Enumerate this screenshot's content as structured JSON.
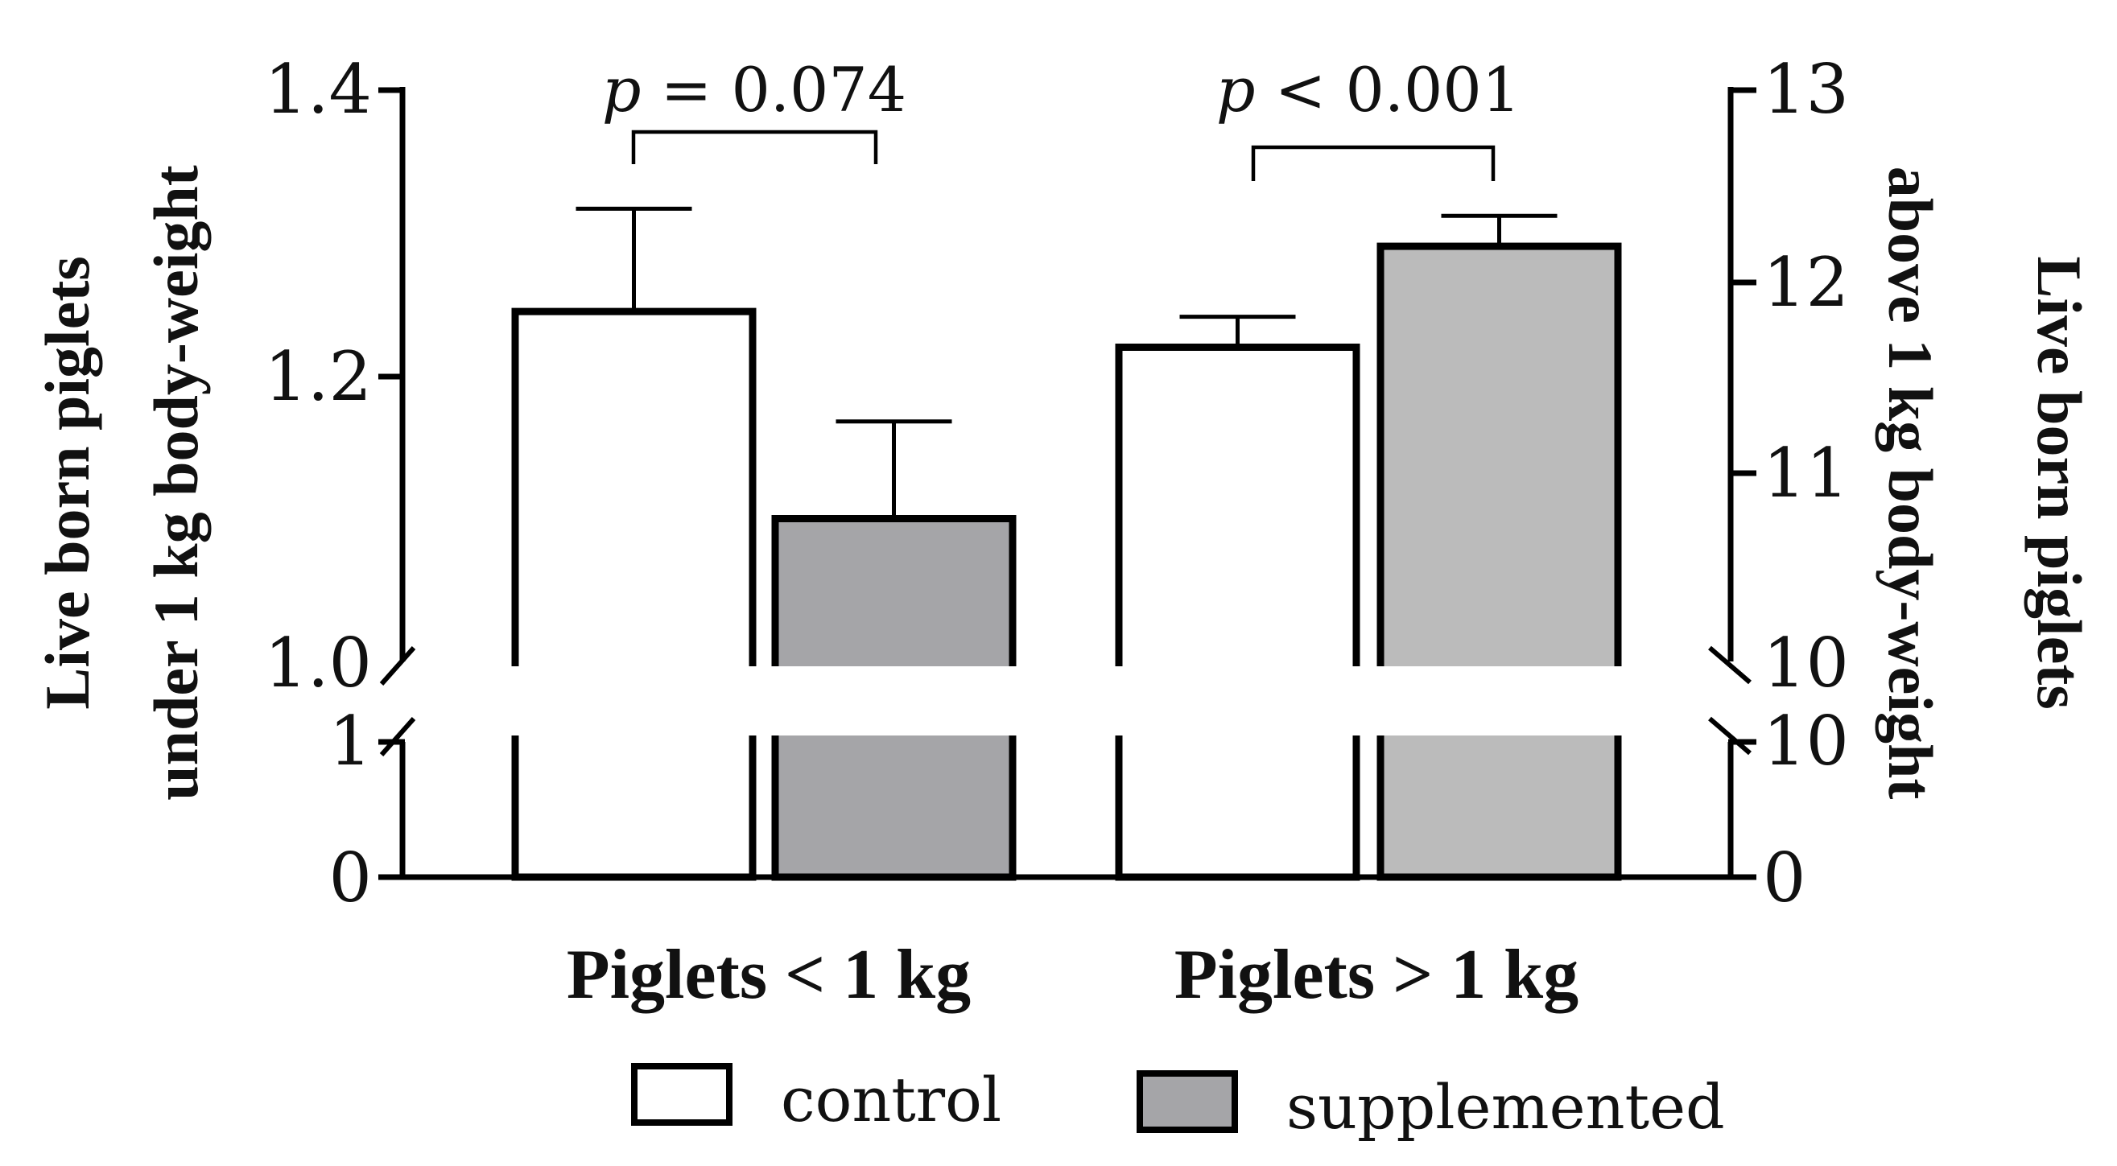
{
  "chart_data": {
    "type": "bar",
    "categories": [
      "Piglets < 1 kg",
      "Piglets > 1 kg"
    ],
    "series": [
      {
        "name": "control",
        "color": "#ffffff",
        "values": [
          1.245,
          11.65
        ],
        "errors": [
          0.072,
          0.16
        ]
      },
      {
        "name": "supplemented",
        "color_left": "#a5a5a8",
        "color_right": "#bbbbbb",
        "values": [
          1.1,
          12.18
        ],
        "errors": [
          0.068,
          0.16
        ]
      }
    ],
    "left_axis": {
      "title_line1": "Live born piglets",
      "title_line2": "under 1 kg body-weight",
      "upper_range": [
        1.0,
        1.4
      ],
      "lower_range": [
        0,
        1
      ],
      "upper_ticks": [
        "1.4",
        "1.2",
        "1.0"
      ],
      "lower_ticks": [
        "1",
        "0"
      ]
    },
    "right_axis": {
      "title_line1": "Live born piglets",
      "title_line2": "above 1 kg body-weight",
      "upper_range": [
        10,
        13
      ],
      "lower_range": [
        0,
        10
      ],
      "upper_ticks": [
        "13",
        "12",
        "11",
        "10"
      ],
      "lower_ticks": [
        "10",
        "0"
      ]
    },
    "annotations": [
      {
        "category": "Piglets < 1 kg",
        "italic": "p",
        "text": " = 0.074"
      },
      {
        "category": "Piglets > 1 kg",
        "italic": "p",
        "text": " < 0.001"
      }
    ],
    "legend": [
      {
        "label": "control",
        "color": "#ffffff"
      },
      {
        "label": "supplemented",
        "color": "#a5a5a8"
      }
    ],
    "axis_break": true
  }
}
